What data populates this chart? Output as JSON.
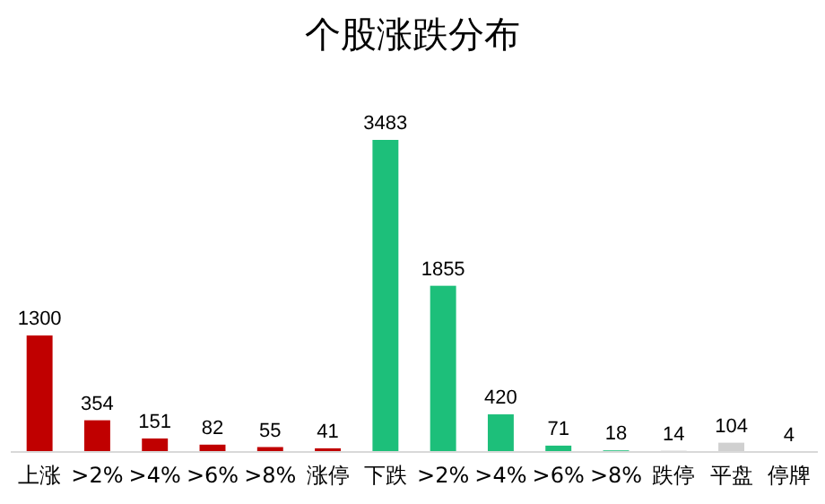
{
  "chart_data": {
    "type": "bar",
    "title": "个股涨跌分布",
    "categories": [
      "上涨",
      ">2%",
      ">4%",
      ">6%",
      ">8%",
      "涨停",
      "下跌",
      ">2%",
      ">4%",
      ">6%",
      ">8%",
      "跌停",
      "平盘",
      "停牌"
    ],
    "values": [
      1300,
      354,
      151,
      82,
      55,
      41,
      3483,
      1855,
      420,
      71,
      18,
      14,
      104,
      4
    ],
    "colors": [
      "#c00000",
      "#c00000",
      "#c00000",
      "#c00000",
      "#c00000",
      "#c00000",
      "#1dbf7a",
      "#1dbf7a",
      "#1dbf7a",
      "#1dbf7a",
      "#1dbf7a",
      "#d0d0d0",
      "#d0d0d0",
      "#d0d0d0"
    ],
    "data_labels": true
  }
}
